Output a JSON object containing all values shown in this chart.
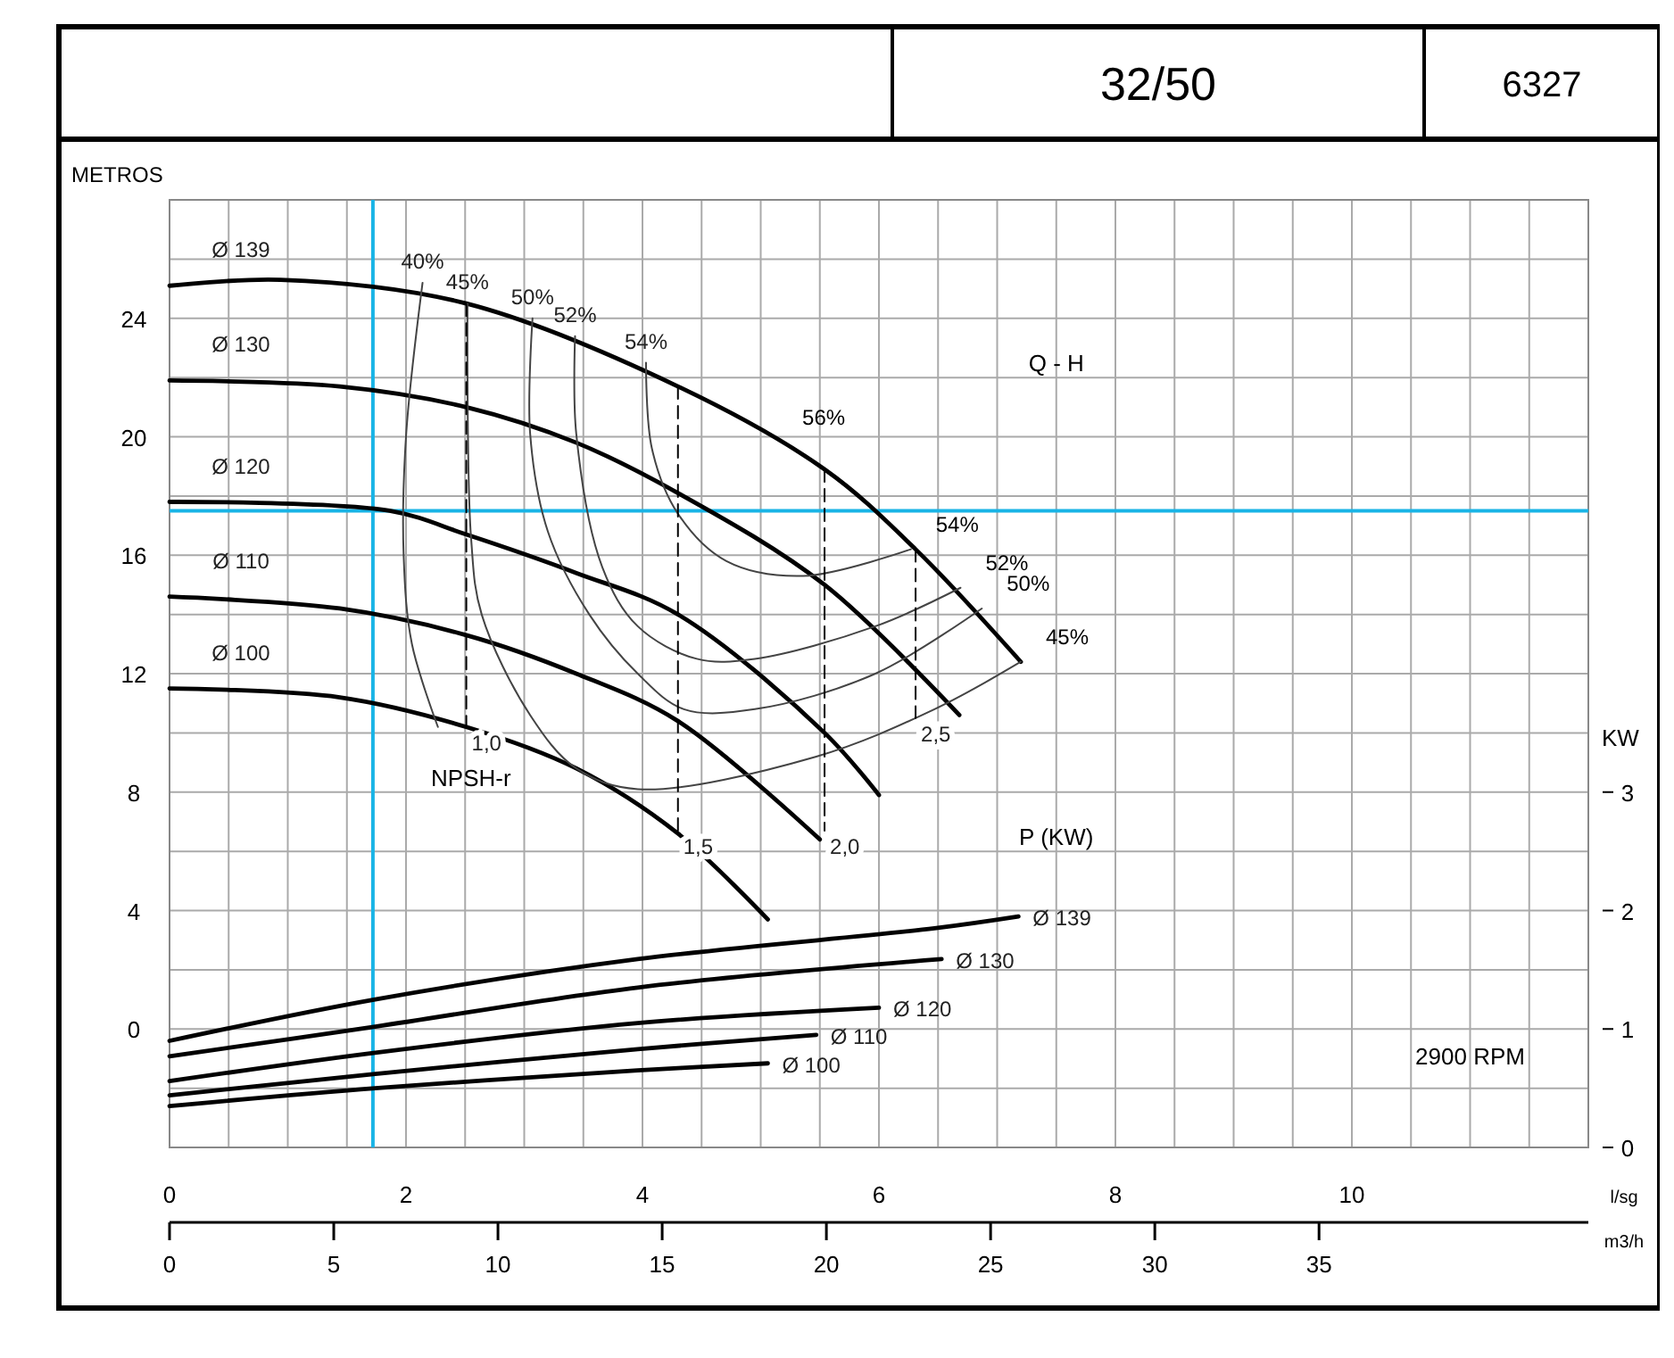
{
  "chart_data": {
    "type": "line",
    "title": "32/50",
    "subtitle": "6327",
    "xlabel": "l/sg",
    "x2label": "m3/h",
    "ylabel": "METROS",
    "y2label": "KW",
    "xlim": [
      0,
      12
    ],
    "ylim": [
      -4,
      28
    ],
    "x2lim": [
      0,
      43.2
    ],
    "y2lim": [
      0,
      8
    ],
    "xticks": [
      0,
      {
        "value": 0.5,
        "label": null
      },
      {
        "value": 1,
        "label": null
      },
      {
        "value": 1.5,
        "label": null
      },
      2,
      {
        "value": 2.5,
        "label": null
      },
      {
        "value": 3,
        "label": null
      },
      {
        "value": 3.5,
        "label": null
      },
      4,
      {
        "value": 4.5,
        "label": null
      },
      {
        "value": 5,
        "label": null
      },
      {
        "value": 5.5,
        "label": null
      },
      6,
      {
        "value": 6.5,
        "label": null
      },
      {
        "value": 7,
        "label": null
      },
      {
        "value": 7.5,
        "label": null
      },
      8,
      {
        "value": 8.5,
        "label": null
      },
      {
        "value": 9,
        "label": null
      },
      {
        "value": 9.5,
        "label": null
      },
      10,
      {
        "value": 10.5,
        "label": null
      },
      {
        "value": 11,
        "label": null
      },
      {
        "value": 11.5,
        "label": null
      },
      {
        "value": 12,
        "label": null
      }
    ],
    "yticks": [
      {
        "value": -4,
        "label": null
      },
      {
        "value": -2,
        "label": null
      },
      0,
      {
        "value": 2,
        "label": null
      },
      4,
      {
        "value": 6,
        "label": null
      },
      8,
      {
        "value": 10,
        "label": null
      },
      12,
      {
        "value": 14,
        "label": null
      },
      16,
      {
        "value": 18,
        "label": null
      },
      20,
      {
        "value": 22,
        "label": null
      },
      24,
      {
        "value": 26,
        "label": null
      },
      {
        "value": 28,
        "label": null
      }
    ],
    "x2ticks": [
      0,
      5,
      10,
      15,
      20,
      25,
      30,
      35
    ],
    "y2ticks": [
      0,
      1,
      2,
      3
    ],
    "grid": true,
    "series": [
      {
        "name": "Ø 139",
        "color": "#000000",
        "x": [
          0,
          0.94,
          2.51,
          4.3,
          5.54,
          6.31,
          7.2
        ],
        "values": [
          25.1,
          25.3,
          24.5,
          21.7,
          18.9,
          16.2,
          12.4
        ]
      },
      {
        "name": "Ø 130",
        "color": "#000000",
        "x": [
          0,
          1.44,
          2.51,
          3.44,
          4.3,
          5.54,
          6.68
        ],
        "values": [
          21.9,
          21.7,
          21.0,
          19.8,
          18.1,
          15.0,
          10.6
        ]
      },
      {
        "name": "Ø 120",
        "color": "#000000",
        "x": [
          0,
          1.86,
          2.51,
          3.44,
          4.3,
          5.54,
          6.0
        ],
        "values": [
          17.8,
          17.5,
          16.7,
          15.4,
          14.0,
          10.0,
          7.9
        ]
      },
      {
        "name": "Ø 110",
        "color": "#000000",
        "x": [
          0,
          1.44,
          2.51,
          3.44,
          4.3,
          5.5
        ],
        "values": [
          14.6,
          14.2,
          13.3,
          12.0,
          10.4,
          6.4
        ]
      },
      {
        "name": "Ø 100",
        "color": "#000000",
        "x": [
          0,
          1.44,
          2.51,
          3.44,
          4.3,
          5.06
        ],
        "values": [
          11.5,
          11.2,
          10.2,
          8.8,
          6.6,
          3.7
        ]
      },
      {
        "name": "40%",
        "color": "#444444",
        "x": [
          2.14,
          2.0,
          1.98,
          2.05,
          2.27
        ],
        "values": [
          25.2,
          20.0,
          16.0,
          13.0,
          10.2
        ]
      },
      {
        "name": "45%",
        "color": "#444444",
        "x": [
          2.52,
          2.55,
          2.64,
          3.05,
          3.44,
          3.96,
          5.47,
          6.47,
          7.2
        ],
        "values": [
          24.5,
          16.6,
          14.0,
          10.6,
          8.8,
          8.1,
          9.2,
          10.8,
          12.4
        ]
      },
      {
        "name": "50%",
        "color": "#444444",
        "x": [
          3.07,
          3.05,
          3.2,
          3.55,
          3.96,
          4.35,
          4.95,
          5.97,
          6.87
        ],
        "values": [
          24.0,
          20.1,
          16.8,
          14.0,
          12.0,
          10.8,
          10.8,
          12.0,
          14.2
        ]
      },
      {
        "name": "52%",
        "color": "#444444",
        "x": [
          3.43,
          3.44,
          3.66,
          3.96,
          4.46,
          4.95,
          5.97,
          6.69
        ],
        "values": [
          23.4,
          20.1,
          15.6,
          13.6,
          12.5,
          12.5,
          13.6,
          14.9
        ]
      },
      {
        "name": "54%",
        "color": "#444444",
        "x": [
          4.03,
          4.08,
          4.3,
          4.71,
          5.36,
          6.27
        ],
        "values": [
          22.5,
          19.6,
          17.4,
          15.8,
          15.3,
          16.2
        ]
      },
      {
        "name": "1,0",
        "color": "#000000",
        "line_style": "dashed",
        "x": [
          2.51,
          2.51
        ],
        "values": [
          24.5,
          10.2
        ]
      },
      {
        "name": "1,5",
        "color": "#000000",
        "line_style": "dashed",
        "x": [
          4.3,
          4.3
        ],
        "values": [
          21.7,
          6.7
        ]
      },
      {
        "name": "2,0",
        "color": "#000000",
        "line_style": "dashed",
        "x": [
          5.54,
          5.54
        ],
        "values": [
          18.9,
          6.7
        ]
      },
      {
        "name": "2,5",
        "color": "#000000",
        "line_style": "dashed",
        "x": [
          6.31,
          6.31
        ],
        "values": [
          16.2,
          10.5
        ]
      },
      {
        "name": "Ø 139",
        "color": "#000000",
        "axis": "y2",
        "x": [
          0,
          1.74,
          3.96,
          6.47,
          7.18
        ],
        "values": [
          0.9,
          1.25,
          1.59,
          1.85,
          1.95
        ]
      },
      {
        "name": "Ø 130",
        "color": "#000000",
        "axis": "y2",
        "x": [
          0,
          1.74,
          3.96,
          6.53
        ],
        "values": [
          0.77,
          1.02,
          1.35,
          1.59
        ]
      },
      {
        "name": "Ø 120",
        "color": "#000000",
        "axis": "y2",
        "x": [
          0,
          1.74,
          3.96,
          6.0
        ],
        "values": [
          0.56,
          0.8,
          1.05,
          1.18
        ]
      },
      {
        "name": "Ø 110",
        "color": "#000000",
        "axis": "y2",
        "x": [
          0,
          1.74,
          3.96,
          5.47
        ],
        "values": [
          0.44,
          0.62,
          0.83,
          0.95
        ]
      },
      {
        "name": "Ø 100",
        "color": "#000000",
        "axis": "y2",
        "x": [
          0,
          1.74,
          3.96,
          5.06
        ],
        "values": [
          0.35,
          0.5,
          0.65,
          0.71
        ]
      }
    ],
    "ref_lines": [
      {
        "axis": "x",
        "value": 1.72,
        "color": "#19b4e6"
      },
      {
        "axis": "y",
        "value": 17.5,
        "color": "#19b4e6"
      }
    ],
    "annotations": [
      "Q - H",
      "P (KW)",
      "NPSH-r",
      "2900 RPM",
      {
        "text": "56%",
        "x": 5.14,
        "y": 19.8
      },
      {
        "text": "54%",
        "x": 6.27,
        "y": 16.2
      },
      {
        "text": "52%",
        "x": 6.69,
        "y": 14.9
      },
      {
        "text": "50%",
        "x": 6.87,
        "y": 14.2
      },
      {
        "text": "45%",
        "x": 7.2,
        "y": 12.4
      }
    ]
  }
}
